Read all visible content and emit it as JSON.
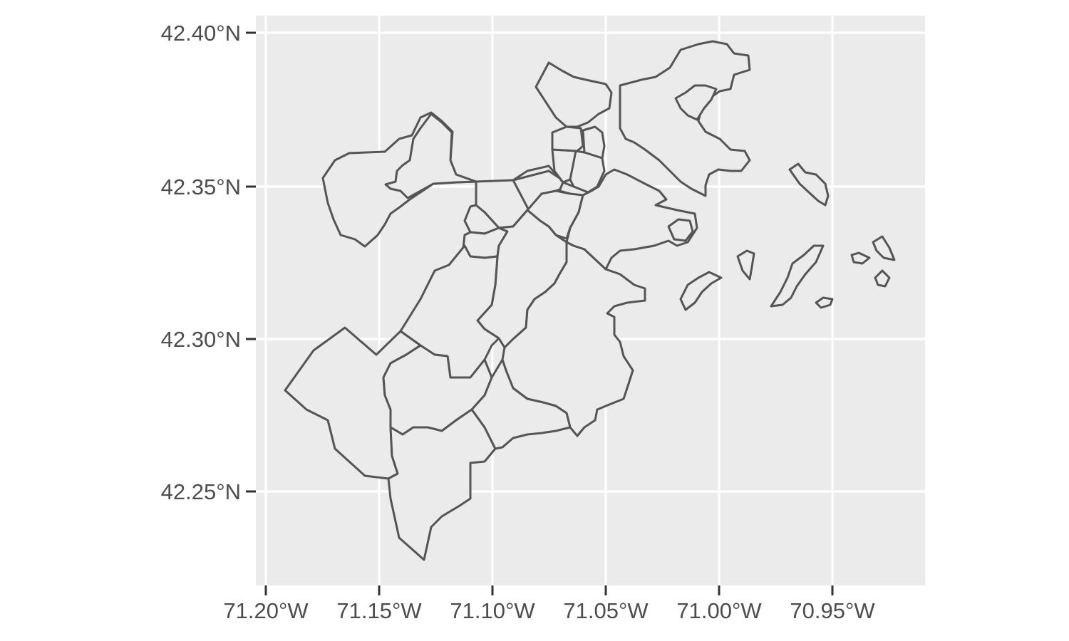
{
  "map": {
    "colors": {
      "panel_background": "#ebebeb",
      "gridline": "#ffffff",
      "region_fill": "#ebebeb",
      "region_outline": "#555555",
      "tick_text": "#4d4d4d"
    },
    "x_axis": {
      "labels": [
        "71.20°W",
        "71.15°W",
        "71.10°W",
        "71.05°W",
        "71.00°W",
        "70.95°W"
      ]
    },
    "y_axis": {
      "labels": [
        "42.40°N",
        "42.35°N",
        "42.30°N",
        "42.25°N"
      ]
    }
  }
}
